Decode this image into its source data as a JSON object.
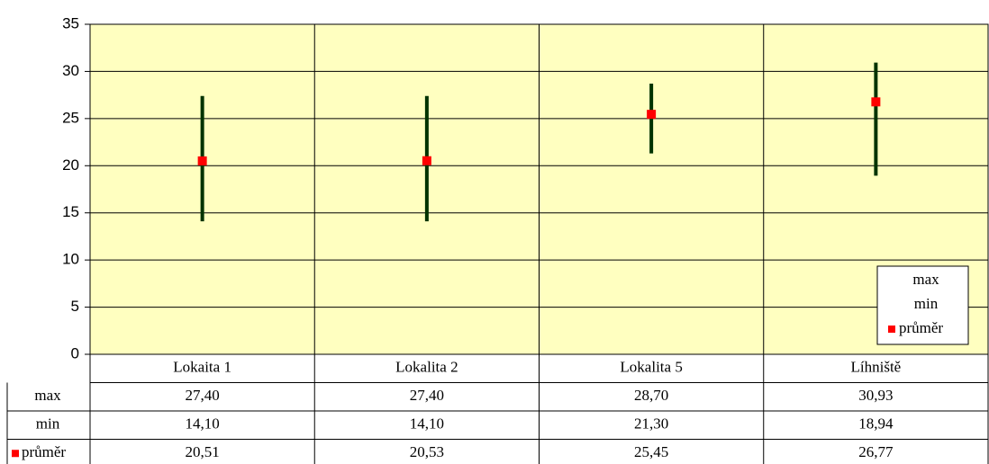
{
  "chart_data": {
    "type": "hilo",
    "categories": [
      "Lokaita 1",
      "Lokalita 2",
      "Lokalita 5",
      "Líhniště"
    ],
    "series": [
      {
        "name": "max",
        "values": [
          27.4,
          27.4,
          28.7,
          30.93
        ],
        "value_labels": [
          "27,40",
          "27,40",
          "28,70",
          "30,93"
        ]
      },
      {
        "name": "min",
        "values": [
          14.1,
          14.1,
          21.3,
          18.94
        ],
        "value_labels": [
          "14,10",
          "14,10",
          "21,30",
          "18,94"
        ]
      },
      {
        "name": "průměr",
        "color": "#ff0000",
        "values": [
          20.51,
          20.53,
          25.45,
          26.77
        ],
        "value_labels": [
          "20,51",
          "20,53",
          "25,45",
          "26,77"
        ]
      }
    ],
    "line_color": "#003300",
    "background": "#ffffc0",
    "ylim": [
      0,
      35
    ],
    "yticks": [
      0,
      5,
      10,
      15,
      20,
      25,
      30,
      35
    ],
    "grid": true,
    "legend": "bottom-right"
  }
}
